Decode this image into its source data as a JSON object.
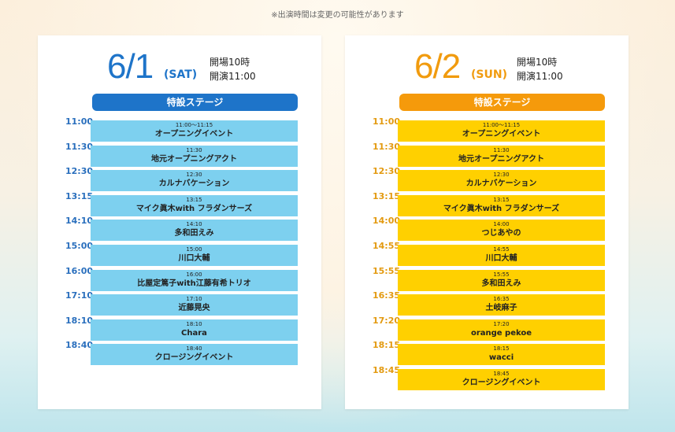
{
  "notice": "※出演時間は変更の可能性があります",
  "days": [
    {
      "date": "6/1",
      "weekday": "(SAT)",
      "gate_open": "開場10時",
      "show_start": "開演11:00",
      "stage": "特設ステージ",
      "times": [
        "11:00",
        "11:30",
        "12:30",
        "13:15",
        "14:10",
        "15:00",
        "16:00",
        "17:10",
        "18:10",
        "18:40"
      ],
      "acts": [
        {
          "time": "11:00〜11:15",
          "name": "オープニングイベント"
        },
        {
          "time": "11:30",
          "name": "地元オープニングアクト"
        },
        {
          "time": "12:30",
          "name": "カルナバケーション"
        },
        {
          "time": "13:15",
          "name": "マイク眞木with フラダンサーズ"
        },
        {
          "time": "14:10",
          "name": "多和田えみ"
        },
        {
          "time": "15:00",
          "name": "川口大輔"
        },
        {
          "time": "16:00",
          "name": "比屋定篤子with江藤有希トリオ"
        },
        {
          "time": "17:10",
          "name": "近藤晃央"
        },
        {
          "time": "18:10",
          "name": "Chara"
        },
        {
          "time": "18:40",
          "name": "クロージングイベント"
        }
      ]
    },
    {
      "date": "6/2",
      "weekday": "(SUN)",
      "gate_open": "開場10時",
      "show_start": "開演11:00",
      "stage": "特設ステージ",
      "times": [
        "11:00",
        "11:30",
        "12:30",
        "13:15",
        "14:00",
        "14:55",
        "15:55",
        "16:35",
        "17:20",
        "18:15",
        "18:45"
      ],
      "acts": [
        {
          "time": "11:00〜11:15",
          "name": "オープニングイベント"
        },
        {
          "time": "11:30",
          "name": "地元オープニングアクト"
        },
        {
          "time": "12:30",
          "name": "カルナバケーション"
        },
        {
          "time": "13:15",
          "name": "マイク眞木with フラダンサーズ"
        },
        {
          "time": "14:00",
          "name": "つじあやの"
        },
        {
          "time": "14:55",
          "name": "川口大輔"
        },
        {
          "time": "15:55",
          "name": "多和田えみ"
        },
        {
          "time": "16:35",
          "name": "土岐麻子"
        },
        {
          "time": "17:20",
          "name": "orange pekoe"
        },
        {
          "time": "18:15",
          "name": "wacci"
        },
        {
          "time": "18:45",
          "name": "クロージングイベント"
        }
      ]
    }
  ],
  "colors": {
    "day1_accent": "#1e74c9",
    "day1_block": "#7dd0ef",
    "day2_accent": "#f59a0b",
    "day2_block": "#ffd000"
  }
}
